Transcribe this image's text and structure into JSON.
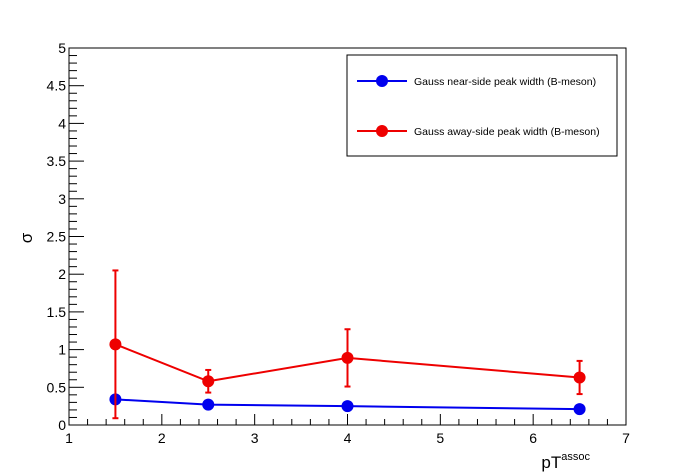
{
  "chart_data": {
    "type": "line",
    "title": "",
    "xlabel": "pT",
    "xlabel_sup": "assoc",
    "ylabel": "σ",
    "xlim": [
      1,
      7
    ],
    "ylim": [
      0,
      5
    ],
    "x_ticks": [
      "1",
      "2",
      "3",
      "4",
      "5",
      "6",
      "7"
    ],
    "y_ticks": [
      "0",
      "0.5",
      "1",
      "1.5",
      "2",
      "2.5",
      "3",
      "3.5",
      "4",
      "4.5",
      "5"
    ],
    "grid": false,
    "legend_position": "top-right",
    "series": [
      {
        "name": "Gauss near-side peak width (B-meson)",
        "color": "#0000ee",
        "x": [
          1.5,
          2.5,
          4.0,
          6.5
        ],
        "y": [
          0.34,
          0.27,
          0.25,
          0.21
        ],
        "err": [
          0.0,
          0.0,
          0.0,
          0.0
        ]
      },
      {
        "name": "Gauss away-side peak width (B-meson)",
        "color": "#ee0000",
        "x": [
          1.5,
          2.5,
          4.0,
          6.5
        ],
        "y": [
          1.07,
          0.58,
          0.89,
          0.63
        ],
        "err": [
          0.98,
          0.15,
          0.38,
          0.22
        ]
      }
    ]
  }
}
